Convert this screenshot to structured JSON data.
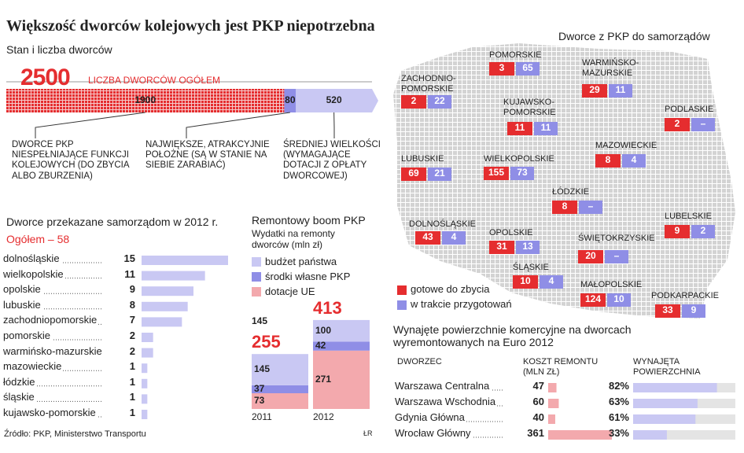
{
  "title": "Większość dworców kolejowych jest PKP niepotrzebna",
  "subtitle": "Stan i liczba dworców",
  "source": "Źródło: PKP, Ministerstwo Transportu",
  "credit": "ŁR",
  "chart_data": [
    {
      "type": "stacked-hbar",
      "total": 2500,
      "total_label": "LICZBA DWORCÓW OGÓŁEM",
      "segments": [
        {
          "name": "DWORCE PKP NIESPEŁNIAJĄCE FUNKCJI KOLEJOWYCH (DO ZBYCIA ALBO ZBURZENIA)",
          "value": 1900,
          "color": "#e52d2f"
        },
        {
          "name": "NAJWIĘKSZE, ATRAKCYJNIE POŁOŻNE (SĄ W STANIE NA SIEBIE ZARABIAĆ)",
          "value": 80,
          "color": "#8f8ee6"
        },
        {
          "name": "ŚREDNIEJ WIELKOŚCI (WYMAGAJĄCE DOTACJI Z OPŁATY DWORCOWEJ)",
          "value": 520,
          "color": "#c9c8f3"
        }
      ]
    },
    {
      "type": "hbar",
      "title": "Dworce przekazane samorządom w 2012 r.",
      "total": {
        "value": 58,
        "label": "Ogółem – 58"
      },
      "color": "#c9c8f3",
      "xlim": [
        0,
        15
      ],
      "categories": [
        "dolnośląskie",
        "wielkopolskie",
        "opolskie",
        "lubuskie",
        "zachodniopomorskie",
        "pomorskie",
        "warmińsko-mazurskie",
        "mazowieckie",
        "łódzkie",
        "śląskie",
        "kujawsko-pomorskie"
      ],
      "values": [
        15,
        11,
        9,
        8,
        7,
        2,
        2,
        1,
        1,
        1,
        1
      ]
    },
    {
      "type": "stacked-bar",
      "title": "Remontowy boom PKP",
      "subtitle": "Wydatki na remonty dworców (mln zł)",
      "categories": [
        "2011",
        "2012"
      ],
      "totals": [
        255,
        413
      ],
      "annotation": 145,
      "ylim": [
        0,
        420
      ],
      "series": [
        {
          "name": "dotacje UE",
          "color": "#f3a9ad",
          "values": [
            73,
            271
          ]
        },
        {
          "name": "środki własne PKP",
          "color": "#8f8ee6",
          "values": [
            37,
            42
          ]
        },
        {
          "name": "budżet państwa",
          "color": "#c9c8f3",
          "values": [
            145,
            100
          ]
        }
      ]
    },
    {
      "type": "map",
      "title": "Dworce z PKP do samorządów",
      "categories": [
        "POMORSKIE",
        "ZACHODNIO-POMORSKIE",
        "WARMIŃSKO-MAZURSKIE",
        "KUJAWSKO-POMORSKIE",
        "PODLASKIE",
        "LUBUSKIE",
        "WIELKOPOLSKIE",
        "MAZOWIECKIE",
        "ŁÓDZKIE",
        "DOLNOŚLĄSKIE",
        "OPOLSKIE",
        "ŚWIĘTOKRZYSKIE",
        "LUBELSKIE",
        "ŚLĄSKIE",
        "MAŁOPOLSKIE",
        "PODKARPACKIE"
      ],
      "series": [
        {
          "name": "gotowe do zbycia",
          "color": "#e52d2f",
          "values": [
            3,
            2,
            29,
            11,
            2,
            69,
            155,
            8,
            8,
            43,
            31,
            20,
            9,
            10,
            124,
            33
          ]
        },
        {
          "name": "w trakcie przygotowań",
          "color": "#8f8ee6",
          "values": [
            65,
            22,
            11,
            11,
            null,
            21,
            73,
            4,
            null,
            4,
            13,
            null,
            2,
            4,
            10,
            9
          ],
          "value_labels": [
            null,
            null,
            null,
            null,
            "–",
            null,
            null,
            null,
            "–",
            null,
            null,
            "–",
            null,
            null,
            null,
            null
          ]
        }
      ]
    },
    {
      "type": "table-bars",
      "title": "Wynajęte powierzchnie komercyjne na dworcach wyremontowanych na Euro 2012",
      "columns": [
        "DWORZEC",
        "KOSZT REMONTU (MLN ZŁ)",
        "WYNAJĘTA POWIERZCHNIA"
      ],
      "categories": [
        "Warszawa Centralna",
        "Warszawa Wschodnia",
        "Gdynia Główna",
        "Wrocław Główny"
      ],
      "cost": [
        47,
        60,
        40,
        361
      ],
      "cost_color": "#f3a9ad",
      "xlim": [
        0,
        361
      ],
      "share": [
        82,
        63,
        61,
        33
      ],
      "share_labels": [
        "82%",
        "63%",
        "61%",
        "33%"
      ],
      "share_color": "#c9c8f3",
      "share_lim": [
        0,
        100
      ]
    }
  ]
}
